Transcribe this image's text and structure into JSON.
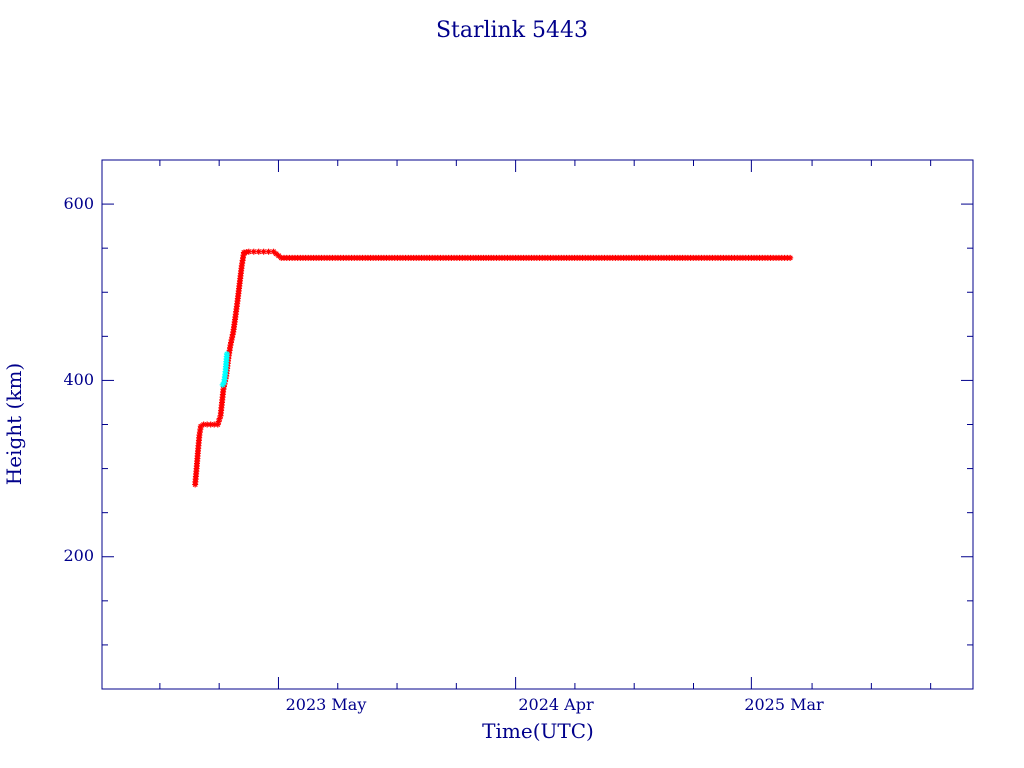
{
  "chart_data": {
    "type": "scatter",
    "title": "Starlink 5443",
    "xlabel": "Time(UTC)",
    "ylabel": "Height (km)",
    "x_tick_labels": [
      "2023 May",
      "2024 Apr",
      "2025 Mar"
    ],
    "x_tick_dates": [
      "2023-05-01",
      "2024-04-01",
      "2025-03-01"
    ],
    "xlim": [
      "2022-08-24",
      "2026-01-09"
    ],
    "y_tick_labels": [
      "200",
      "400",
      "600"
    ],
    "y_ticks": [
      200,
      400,
      600
    ],
    "ylim": [
      50,
      650
    ],
    "grid": false,
    "colors": {
      "axes": "#00008b",
      "primary": "#ff0000",
      "secondary": "#00ffff"
    },
    "series": [
      {
        "color": "#ff0000",
        "marker": "*",
        "points": [
          [
            "2023-01-03",
            282
          ],
          [
            "2023-01-05",
            300
          ],
          [
            "2023-01-07",
            320
          ],
          [
            "2023-01-09",
            338
          ],
          [
            "2023-01-11",
            348
          ],
          [
            "2023-01-15",
            350
          ],
          [
            "2023-01-20",
            350
          ],
          [
            "2023-01-25",
            350
          ],
          [
            "2023-01-30",
            350
          ],
          [
            "2023-02-04",
            350
          ],
          [
            "2023-02-08",
            360
          ],
          [
            "2023-02-10",
            375
          ],
          [
            "2023-02-12",
            390
          ],
          [
            "2023-02-16",
            405
          ],
          [
            "2023-02-19",
            425
          ],
          [
            "2023-02-22",
            440
          ],
          [
            "2023-02-26",
            455
          ],
          [
            "2023-03-01",
            472
          ],
          [
            "2023-03-04",
            490
          ],
          [
            "2023-03-07",
            510
          ],
          [
            "2023-03-10",
            530
          ],
          [
            "2023-03-13",
            545
          ],
          [
            "2023-03-20",
            546
          ],
          [
            "2023-03-27",
            546
          ],
          [
            "2023-04-03",
            546
          ],
          [
            "2023-04-10",
            546
          ],
          [
            "2023-04-17",
            546
          ],
          [
            "2023-04-24",
            546
          ],
          [
            "2023-05-05",
            539
          ],
          [
            "2023-06-01",
            539
          ],
          [
            "2023-07-01",
            539
          ],
          [
            "2023-08-01",
            539
          ],
          [
            "2023-09-01",
            539
          ],
          [
            "2023-10-01",
            539
          ],
          [
            "2023-11-01",
            539
          ],
          [
            "2023-12-01",
            539
          ],
          [
            "2024-01-01",
            539
          ],
          [
            "2024-02-01",
            539
          ],
          [
            "2024-03-01",
            539
          ],
          [
            "2024-04-01",
            539
          ],
          [
            "2024-05-01",
            539
          ],
          [
            "2024-06-01",
            539
          ],
          [
            "2024-07-01",
            539
          ],
          [
            "2024-08-01",
            539
          ],
          [
            "2024-09-01",
            539
          ],
          [
            "2024-10-01",
            539
          ],
          [
            "2024-11-01",
            539
          ],
          [
            "2024-12-01",
            539
          ],
          [
            "2025-01-01",
            539
          ],
          [
            "2025-02-01",
            539
          ],
          [
            "2025-03-01",
            539
          ],
          [
            "2025-04-01",
            539
          ],
          [
            "2025-04-25",
            539
          ]
        ]
      },
      {
        "color": "#00ffff",
        "marker": "*",
        "points": [
          [
            "2023-02-11",
            395
          ],
          [
            "2023-02-13",
            398
          ],
          [
            "2023-02-15",
            410
          ],
          [
            "2023-02-17",
            430
          ]
        ]
      }
    ]
  }
}
